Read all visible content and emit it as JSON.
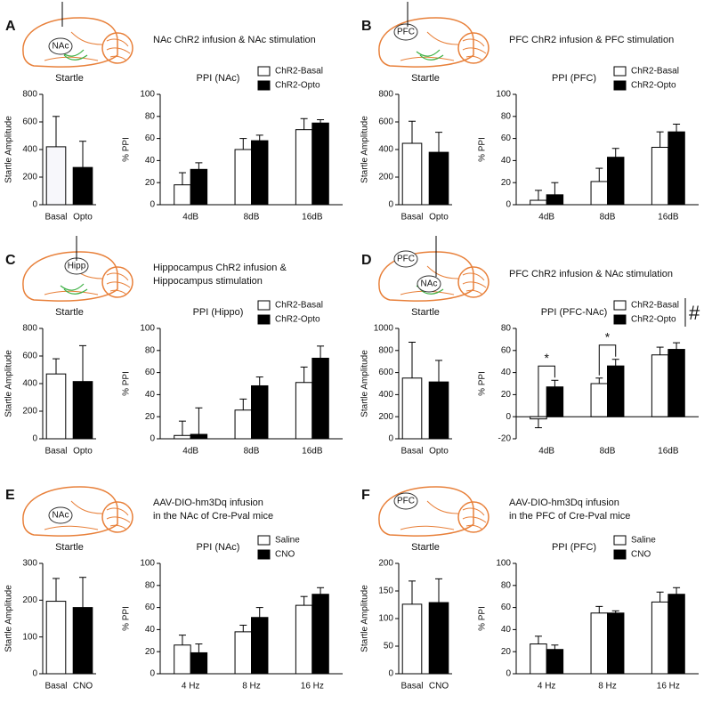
{
  "panels": [
    {
      "letter": "A",
      "caption": [
        "NAc ChR2 infusion & NAc stimulation"
      ],
      "regions": [
        "NAc"
      ]
    },
    {
      "letter": "B",
      "caption": [
        "PFC ChR2 infusion & PFC stimulation"
      ],
      "regions": [
        "PFC"
      ]
    },
    {
      "letter": "C",
      "caption": [
        "Hippocampus ChR2 infusion &",
        "Hippocampus stimulation"
      ],
      "regions": [
        "Hipp"
      ]
    },
    {
      "letter": "D",
      "caption": [
        "PFC ChR2 infusion & NAc stimulation"
      ],
      "regions": [
        "PFC",
        "NAc"
      ]
    },
    {
      "letter": "E",
      "caption": [
        "AAV-DIO-hm3Dq infusion",
        "in the NAc of Cre-Pval mice"
      ],
      "regions": [
        "NAc"
      ]
    },
    {
      "letter": "F",
      "caption": [
        "AAV-DIO-hm3Dq infusion",
        "in the PFC of Cre-Pval mice"
      ],
      "regions": [
        "PFC"
      ]
    }
  ],
  "chart_data": [
    {
      "type": "bar",
      "title": "Startle",
      "ylabel": "Startle Amplitude",
      "categories": [
        "Basal",
        "Opto"
      ],
      "values": [
        420,
        270
      ],
      "errors": [
        220,
        190
      ],
      "colors": [
        "#f7f7fb",
        "#000000"
      ],
      "ylim": [
        0,
        800
      ],
      "yticks": [
        0,
        200,
        400,
        600,
        800
      ]
    },
    {
      "type": "grouped_bar",
      "title": "PPI (NAc)",
      "ylabel": "% PPI",
      "categories": [
        "4dB",
        "8dB",
        "16dB"
      ],
      "series": [
        {
          "name": "ChR2-Basal",
          "color": "#ffffff",
          "values": [
            18,
            50,
            68
          ],
          "errors": [
            11,
            10,
            10
          ]
        },
        {
          "name": "ChR2-Opto",
          "color": "#000000",
          "values": [
            32,
            58,
            74
          ],
          "errors": [
            6,
            5,
            3
          ]
        }
      ],
      "ylim": [
        0,
        100
      ],
      "yticks": [
        0,
        20,
        40,
        60,
        80,
        100
      ]
    },
    {
      "type": "bar",
      "title": "Startle",
      "ylabel": "Startle Amplitude",
      "categories": [
        "Basal",
        "Opto"
      ],
      "values": [
        445,
        380
      ],
      "errors": [
        160,
        145
      ],
      "colors": [
        "#ffffff",
        "#000000"
      ],
      "ylim": [
        0,
        800
      ],
      "yticks": [
        0,
        200,
        400,
        600,
        800
      ]
    },
    {
      "type": "grouped_bar",
      "title": "PPI (PFC)",
      "ylabel": "% PPI",
      "categories": [
        "4dB",
        "8dB",
        "16dB"
      ],
      "series": [
        {
          "name": "ChR2-Basal",
          "color": "#ffffff",
          "values": [
            4,
            21,
            52
          ],
          "errors": [
            9,
            12,
            14
          ]
        },
        {
          "name": "ChR2-Opto",
          "color": "#000000",
          "values": [
            9,
            43,
            66
          ],
          "errors": [
            11,
            8,
            7
          ]
        }
      ],
      "ylim": [
        0,
        100
      ],
      "yticks": [
        0,
        20,
        40,
        60,
        80,
        100
      ]
    },
    {
      "type": "bar",
      "title": "Startle",
      "ylabel": "Startle Amplitude",
      "categories": [
        "Basal",
        "Opto"
      ],
      "values": [
        470,
        415
      ],
      "errors": [
        110,
        260
      ],
      "colors": [
        "#ffffff",
        "#000000"
      ],
      "ylim": [
        0,
        800
      ],
      "yticks": [
        0,
        200,
        400,
        600,
        800
      ]
    },
    {
      "type": "grouped_bar",
      "title": "PPI (Hippo)",
      "ylabel": "% PPI",
      "categories": [
        "4dB",
        "8dB",
        "16dB"
      ],
      "series": [
        {
          "name": "ChR2-Basal",
          "color": "#ffffff",
          "values": [
            3,
            26,
            51
          ],
          "errors": [
            13,
            10,
            14
          ]
        },
        {
          "name": "ChR2-Opto",
          "color": "#000000",
          "values": [
            4,
            48,
            73
          ],
          "errors": [
            24,
            8,
            11
          ]
        }
      ],
      "ylim": [
        0,
        100
      ],
      "yticks": [
        0,
        20,
        40,
        60,
        80,
        100
      ]
    },
    {
      "type": "bar",
      "title": "Startle",
      "ylabel": "Startle Amplitude",
      "categories": [
        "Basal",
        "Opto"
      ],
      "values": [
        550,
        515
      ],
      "errors": [
        325,
        195
      ],
      "colors": [
        "#ffffff",
        "#000000"
      ],
      "ylim": [
        0,
        1000
      ],
      "yticks": [
        0,
        200,
        400,
        600,
        800,
        1000
      ]
    },
    {
      "type": "grouped_bar",
      "title": "PPI (PFC-NAc)",
      "ylabel": "% PPI",
      "categories": [
        "4dB",
        "8dB",
        "16dB"
      ],
      "series": [
        {
          "name": "ChR2-Basal",
          "color": "#ffffff",
          "values": [
            -2,
            30,
            56
          ],
          "errors": [
            8,
            5,
            7
          ]
        },
        {
          "name": "ChR2-Opto",
          "color": "#000000",
          "values": [
            27,
            46,
            61
          ],
          "errors": [
            6,
            6,
            6
          ]
        }
      ],
      "ylim": [
        -20,
        80
      ],
      "yticks": [
        -20,
        0,
        20,
        40,
        60,
        80
      ],
      "brackets": [
        {
          "label": "*",
          "category": "4dB"
        },
        {
          "label": "*",
          "category": "8dB"
        }
      ],
      "legend_note": "#"
    },
    {
      "type": "bar",
      "title": "Startle",
      "ylabel": "Startle Amplitude",
      "categories": [
        "Basal",
        "CNO"
      ],
      "values": [
        197,
        180
      ],
      "errors": [
        62,
        82
      ],
      "colors": [
        "#ffffff",
        "#000000"
      ],
      "ylim": [
        0,
        300
      ],
      "yticks": [
        0,
        100,
        200,
        300
      ]
    },
    {
      "type": "grouped_bar",
      "title": "PPI (NAc)",
      "ylabel": "% PPI",
      "categories": [
        "4 Hz",
        "8 Hz",
        "16 Hz"
      ],
      "series": [
        {
          "name": "Saline",
          "color": "#ffffff",
          "values": [
            26,
            38,
            62
          ],
          "errors": [
            9,
            6,
            8
          ]
        },
        {
          "name": "CNO",
          "color": "#000000",
          "values": [
            19,
            51,
            72
          ],
          "errors": [
            8,
            9,
            6
          ]
        }
      ],
      "ylim": [
        0,
        100
      ],
      "yticks": [
        0,
        20,
        40,
        60,
        80,
        100
      ]
    },
    {
      "type": "bar",
      "title": "Startle",
      "ylabel": "Startle Amplitude",
      "categories": [
        "Basal",
        "CNO"
      ],
      "values": [
        126,
        129
      ],
      "errors": [
        42,
        43
      ],
      "colors": [
        "#ffffff",
        "#000000"
      ],
      "ylim": [
        0,
        200
      ],
      "yticks": [
        0,
        50,
        100,
        150,
        200
      ]
    },
    {
      "type": "grouped_bar",
      "title": "PPI (PFC)",
      "ylabel": "% PPI",
      "categories": [
        "4 Hz",
        "8 Hz",
        "16 Hz"
      ],
      "series": [
        {
          "name": "Saline",
          "color": "#ffffff",
          "values": [
            27,
            55,
            65
          ],
          "errors": [
            7,
            6,
            9
          ]
        },
        {
          "name": "CNO",
          "color": "#000000",
          "values": [
            22,
            55,
            72
          ],
          "errors": [
            4,
            2,
            6
          ]
        }
      ],
      "ylim": [
        0,
        100
      ],
      "yticks": [
        0,
        20,
        40,
        60,
        80,
        100
      ]
    }
  ]
}
